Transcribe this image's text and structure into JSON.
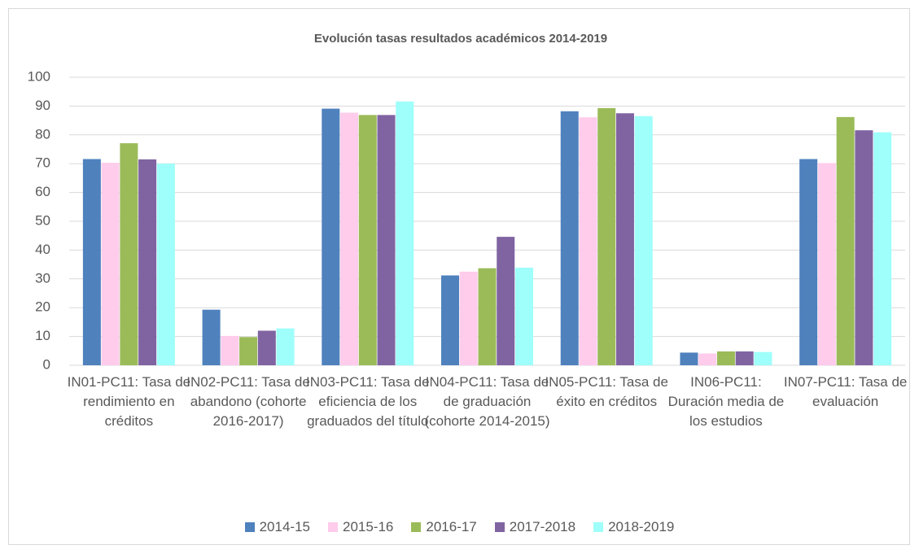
{
  "chart_data": {
    "type": "bar",
    "title": "Evolución tasas resultados académicos 2014-2019",
    "categories": [
      "IN01-PC11: Tasa de rendimiento en créditos",
      "IN02-PC11: Tasa de abandono (cohorte 2016-2017)",
      "IN03-PC11: Tasa de eficiencia de los graduados del título",
      "IN04-PC11: Tasa de de graduación (cohorte 2014-2015)",
      "IN05-PC11: Tasa de éxito en créditos",
      "IN06-PC11: Duración media de los estudios",
      "IN07-PC11: Tasa de evaluación"
    ],
    "series": [
      {
        "name": "2014-15",
        "color": "#4f81bd",
        "values": [
          71.6,
          19.3,
          89.1,
          31.2,
          88.2,
          4.4,
          71.6
        ]
      },
      {
        "name": "2015-16",
        "color": "#ffcceb",
        "values": [
          70.3,
          10.2,
          87.7,
          32.5,
          86.1,
          4.1,
          70.2
        ]
      },
      {
        "name": "2016-17",
        "color": "#9bbb59",
        "values": [
          77.1,
          9.8,
          86.9,
          33.7,
          89.3,
          4.8,
          86.2
        ]
      },
      {
        "name": "2017-2018",
        "color": "#8064a2",
        "values": [
          71.5,
          12.0,
          86.9,
          44.6,
          87.5,
          4.8,
          81.6
        ]
      },
      {
        "name": "2018-2019",
        "color": "#9ffffa",
        "values": [
          70.0,
          12.8,
          91.6,
          33.9,
          86.5,
          4.6,
          80.9
        ]
      }
    ],
    "ylim": [
      0,
      100
    ],
    "yticks": [
      0,
      10,
      20,
      30,
      40,
      50,
      60,
      70,
      80,
      90,
      100
    ],
    "grid": true,
    "legend": "bottom"
  }
}
